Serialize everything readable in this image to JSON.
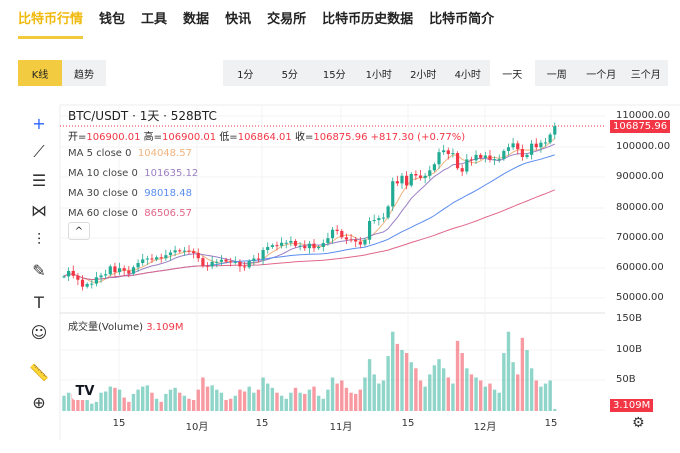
{
  "nav": {
    "tabs": [
      "比特币行情",
      "钱包",
      "工具",
      "数据",
      "快讯",
      "交易所",
      "比特币历史数据",
      "比特币简介"
    ],
    "active": 0
  },
  "chart_type": {
    "options": [
      "K线",
      "趋势"
    ],
    "active": 0
  },
  "intervals": {
    "options": [
      "1分",
      "5分",
      "15分",
      "1小时",
      "2小时",
      "4小时",
      "一天",
      "一周",
      "一个月",
      "三个月"
    ],
    "active": 6
  },
  "legend": {
    "title": "BTC/USDT · 1天 · 528BTC",
    "open_label": "开=",
    "open": "106900.01",
    "high_label": "高=",
    "high": "106900.01",
    "low_label": "低=",
    "low": "106864.01",
    "close_label": "收=",
    "close": "106875.96",
    "change": "+817.30 (+0.77%)",
    "ma": [
      {
        "label": "MA 5 close 0",
        "value": "104048.57",
        "color": "#f0b37e"
      },
      {
        "label": "MA 10 close 0",
        "value": "101635.12",
        "color": "#9b7fc4"
      },
      {
        "label": "MA 30 close 0",
        "value": "98018.48",
        "color": "#5b8def"
      },
      {
        "label": "MA 60 close 0",
        "value": "86506.57",
        "color": "#e0678a"
      }
    ],
    "collapse": "^"
  },
  "volume_label": "成交量(Volume)",
  "volume_value": "3.109M",
  "price_axis": [
    "110000.00",
    "100000.00",
    "90000.00",
    "80000.00",
    "70000.00",
    "60000.00",
    "50000.00"
  ],
  "volume_axis": [
    "150B",
    "100B",
    "50B"
  ],
  "last_price": "106875.96",
  "x_labels": [
    "15",
    "10月",
    "15",
    "11月",
    "15",
    "12月",
    "15"
  ],
  "colors": {
    "up": "#22ab94",
    "down": "#f23645",
    "accent": "#f0b90b"
  },
  "chart_data": {
    "type": "candlestick",
    "price_range": [
      50000,
      110000
    ],
    "volume_range_B": [
      0,
      150
    ],
    "closes_k": [
      57.3,
      59.1,
      57.5,
      56.2,
      53.9,
      54.8,
      54.9,
      57.0,
      57.6,
      58.0,
      60.6,
      58.7,
      60.0,
      59.2,
      58.2,
      60.3,
      61.7,
      62.9,
      63.2,
      62.9,
      63.6,
      63.3,
      64.3,
      65.2,
      65.9,
      65.6,
      65.8,
      65.6,
      65.0,
      63.3,
      60.8,
      60.6,
      62.1,
      62.1,
      62.8,
      62.2,
      62.1,
      62.1,
      60.6,
      60.3,
      62.4,
      63.2,
      62.9,
      66.0,
      67.0,
      67.6,
      67.4,
      68.4,
      68.4,
      69.0,
      67.4,
      67.4,
      66.6,
      68.1,
      66.6,
      67.0,
      68.3,
      69.9,
      72.7,
      72.3,
      70.2,
      69.5,
      69.4,
      68.8,
      67.8,
      69.4,
      75.6,
      75.9,
      76.5,
      76.7,
      80.4,
      88.7,
      88.0,
      90.5,
      87.3,
      91.1,
      90.6,
      89.8,
      90.5,
      92.3,
      94.3,
      98.3,
      98.9,
      97.7,
      98.0,
      93.0,
      91.9,
      95.9,
      95.6,
      97.4,
      96.4,
      97.2,
      95.8,
      96.0,
      96.0,
      98.7,
      99.9,
      101.2,
      99.3,
      96.7,
      97.4,
      101.1,
      99.9,
      101.4,
      101.5,
      104.1,
      106.9
    ],
    "volumes_B": [
      25,
      30,
      28,
      35,
      45,
      30,
      12,
      15,
      30,
      32,
      40,
      38,
      35,
      22,
      15,
      28,
      35,
      40,
      42,
      30,
      20,
      15,
      28,
      35,
      38,
      30,
      25,
      20,
      18,
      35,
      55,
      40,
      42,
      35,
      30,
      18,
      20,
      25,
      35,
      32,
      40,
      30,
      35,
      55,
      45,
      38,
      30,
      25,
      20,
      30,
      38,
      30,
      28,
      35,
      40,
      25,
      20,
      35,
      55,
      45,
      50,
      38,
      30,
      28,
      35,
      55,
      85,
      60,
      45,
      50,
      90,
      130,
      110,
      100,
      95,
      80,
      70,
      50,
      40,
      60,
      75,
      85,
      70,
      55,
      45,
      115,
      95,
      70,
      60,
      55,
      50,
      40,
      45,
      35,
      30,
      95,
      130,
      80,
      60,
      120,
      100,
      70,
      50,
      40,
      45,
      50,
      3
    ]
  }
}
